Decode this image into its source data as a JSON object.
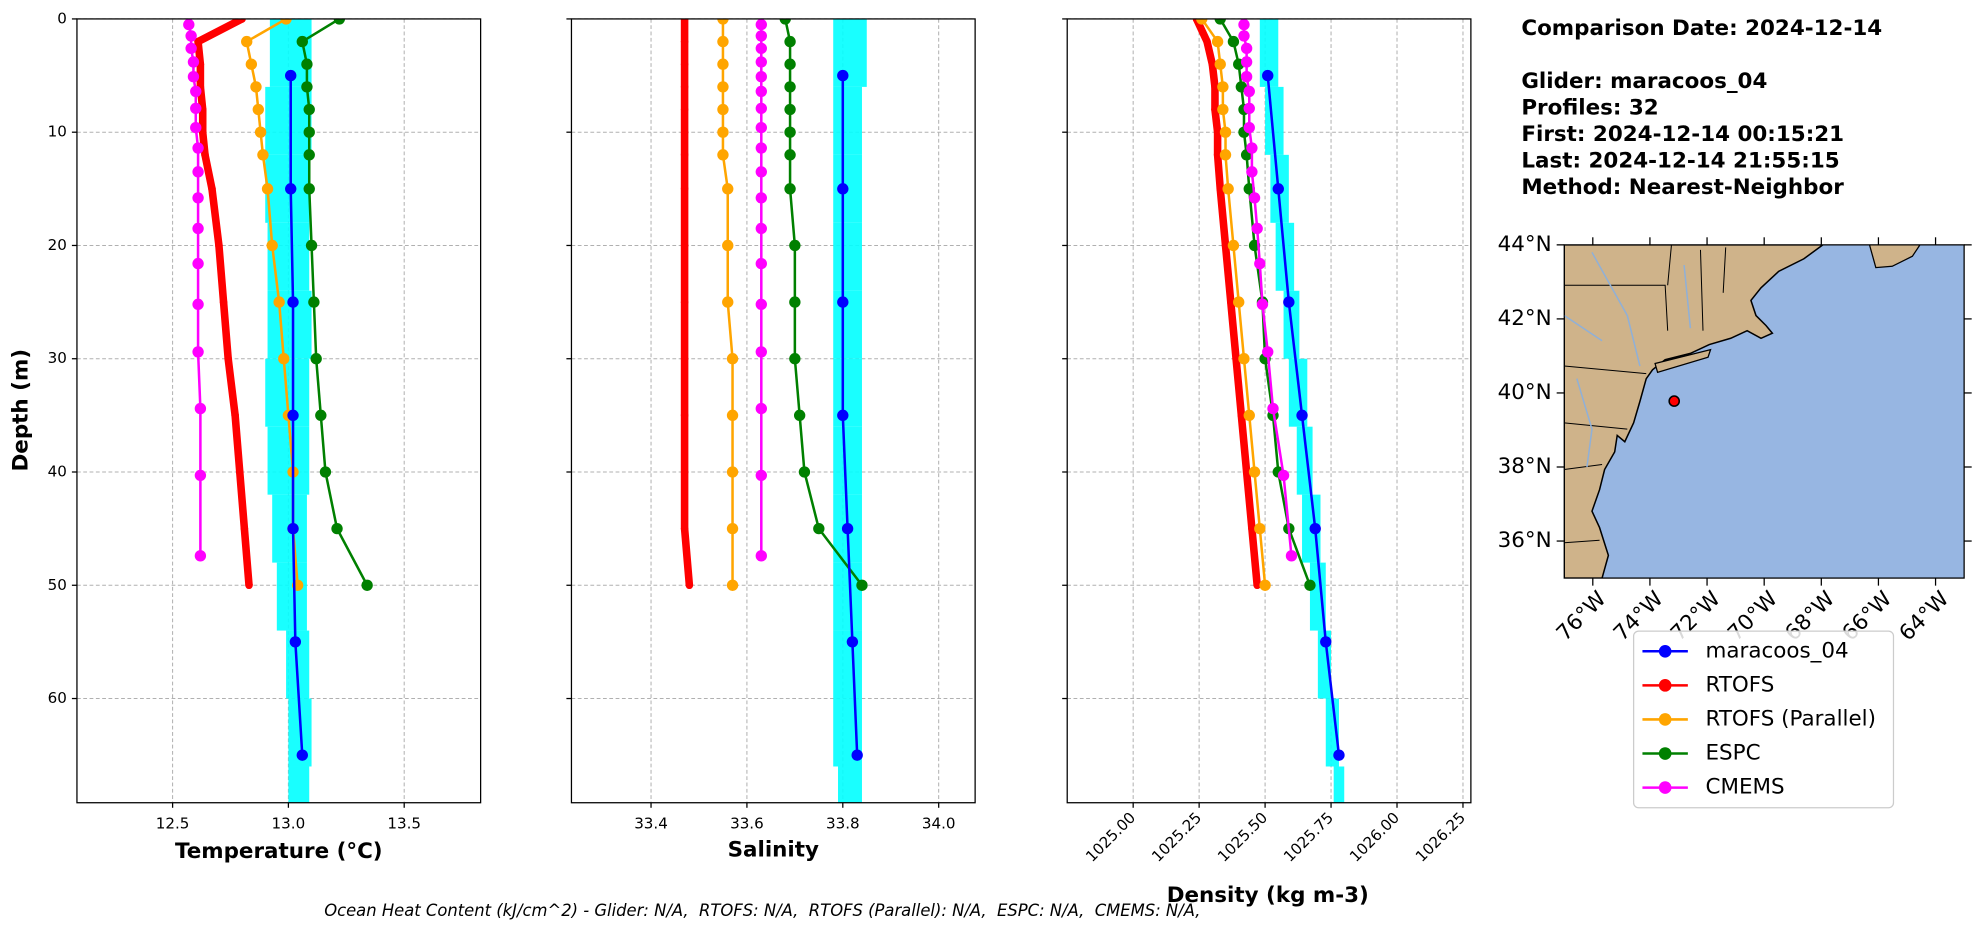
{
  "chart_data": [
    {
      "type": "line",
      "xlabel": "Temperature (°C)",
      "ylabel": "Depth (m)",
      "xlim": [
        12.087,
        13.83
      ],
      "xticks": [
        12.5,
        {
          "value": 13,
          "label": "13.0"
        },
        13.5
      ],
      "ylim": [
        0,
        69.2
      ],
      "yticks": [
        0,
        10,
        20,
        30,
        40,
        50,
        60
      ],
      "y_inverted": true,
      "grid": true,
      "profiles": {
        "color": "#00ffff",
        "depth": [
          3,
          9,
          15,
          21,
          27,
          33,
          39,
          45,
          51,
          57,
          63,
          69
        ],
        "min": [
          12.92,
          12.9,
          12.9,
          12.91,
          12.91,
          12.9,
          12.91,
          12.93,
          12.95,
          12.99,
          13.0,
          13.0
        ],
        "max": [
          13.1,
          13.1,
          13.09,
          13.09,
          13.1,
          13.09,
          13.09,
          13.08,
          13.08,
          13.09,
          13.1,
          13.09
        ]
      },
      "series": [
        {
          "name": "maracoos_04",
          "color": "#0000ff",
          "linewidth": 2,
          "y": [
            5,
            15,
            25,
            35,
            45,
            55,
            65
          ],
          "values": [
            13.01,
            13.01,
            13.02,
            13.02,
            13.02,
            13.03,
            13.06
          ]
        },
        {
          "name": "RTOFS",
          "color": "#ff0000",
          "linewidth": 6,
          "y": [
            0,
            2,
            4,
            6,
            8,
            10,
            12,
            15,
            20,
            25,
            30,
            35,
            40,
            45,
            50
          ],
          "values": [
            12.8,
            12.61,
            12.62,
            12.62,
            12.63,
            12.63,
            12.64,
            12.67,
            12.7,
            12.72,
            12.74,
            12.77,
            12.79,
            12.81,
            12.83
          ]
        },
        {
          "name": "RTOFS (Parallel)",
          "color": "#ffa500",
          "linewidth": 2,
          "y": [
            0,
            2,
            4,
            6,
            8,
            10,
            12,
            15,
            20,
            25,
            30,
            35,
            40,
            45,
            50
          ],
          "values": [
            12.99,
            12.82,
            12.84,
            12.86,
            12.87,
            12.88,
            12.89,
            12.91,
            12.93,
            12.96,
            12.98,
            13.0,
            13.02,
            13.02,
            13.04
          ]
        },
        {
          "name": "ESPC",
          "color": "#008000",
          "linewidth": 2,
          "y": [
            0,
            2,
            4,
            6,
            8,
            10,
            12,
            15,
            20,
            25,
            30,
            35,
            40,
            45,
            50
          ],
          "values": [
            13.22,
            13.06,
            13.08,
            13.08,
            13.09,
            13.09,
            13.09,
            13.09,
            13.1,
            13.11,
            13.12,
            13.14,
            13.16,
            13.21,
            13.34
          ]
        },
        {
          "name": "CMEMS",
          "color": "#ff00ff",
          "linewidth": 2,
          "y": [
            0.5,
            1.5,
            2.6,
            3.8,
            5.1,
            6.4,
            7.9,
            9.6,
            11.4,
            13.5,
            15.8,
            18.5,
            21.6,
            25.2,
            29.4,
            34.4,
            40.3,
            47.4
          ],
          "values": [
            12.57,
            12.58,
            12.58,
            12.59,
            12.59,
            12.6,
            12.6,
            12.6,
            12.61,
            12.61,
            12.61,
            12.61,
            12.61,
            12.61,
            12.61,
            12.62,
            12.62,
            12.62
          ]
        }
      ]
    },
    {
      "type": "line",
      "xlabel": "Salinity",
      "xlim": [
        33.234,
        34.076
      ],
      "xticks": [
        33.4,
        33.6,
        33.8,
        {
          "value": 34,
          "label": "34.0"
        }
      ],
      "profiles": {
        "min": [
          33.78,
          33.78,
          33.78,
          33.78,
          33.78,
          33.78,
          33.78,
          33.78,
          33.78,
          33.78,
          33.78,
          33.79
        ],
        "max": [
          33.85,
          33.84,
          33.84,
          33.84,
          33.84,
          33.84,
          33.84,
          33.84,
          33.84,
          33.84,
          33.84,
          33.84
        ]
      },
      "series": [
        {
          "values": [
            33.8,
            33.8,
            33.8,
            33.8,
            33.81,
            33.82,
            33.83
          ]
        },
        {
          "values": [
            33.47,
            33.47,
            33.47,
            33.47,
            33.47,
            33.47,
            33.47,
            33.47,
            33.47,
            33.47,
            33.47,
            33.47,
            33.47,
            33.47,
            33.48
          ]
        },
        {
          "values": [
            33.55,
            33.55,
            33.55,
            33.55,
            33.55,
            33.55,
            33.55,
            33.56,
            33.56,
            33.56,
            33.57,
            33.57,
            33.57,
            33.57,
            33.57
          ]
        },
        {
          "values": [
            33.68,
            33.69,
            33.69,
            33.69,
            33.69,
            33.69,
            33.69,
            33.69,
            33.7,
            33.7,
            33.7,
            33.71,
            33.72,
            33.75,
            33.84
          ]
        },
        {
          "values": [
            33.63,
            33.63,
            33.63,
            33.63,
            33.63,
            33.63,
            33.63,
            33.63,
            33.63,
            33.63,
            33.63,
            33.63,
            33.63,
            33.63,
            33.63,
            33.63,
            33.63,
            33.63
          ]
        }
      ]
    },
    {
      "type": "line",
      "xlabel": "Density (kg m-3)",
      "xtick_rotation": 45,
      "xlim": [
        1024.75,
        1026.28
      ],
      "xticks": [
        {
          "value": 1025,
          "label": "1025.00"
        },
        1025.25,
        {
          "value": 1025.5,
          "label": "1025.50"
        },
        1025.75,
        {
          "value": 1026,
          "label": "1026.00"
        },
        1026.25
      ],
      "profiles": {
        "min": [
          1025.48,
          1025.5,
          1025.52,
          1025.54,
          1025.57,
          1025.59,
          1025.62,
          1025.64,
          1025.67,
          1025.7,
          1025.73,
          1025.76
        ],
        "max": [
          1025.55,
          1025.57,
          1025.59,
          1025.61,
          1025.63,
          1025.66,
          1025.68,
          1025.71,
          1025.73,
          1025.75,
          1025.78,
          1025.8
        ]
      },
      "series": [
        {
          "values": [
            1025.51,
            1025.55,
            1025.59,
            1025.64,
            1025.69,
            1025.73,
            1025.78
          ]
        },
        {
          "values": [
            1025.24,
            1025.28,
            1025.3,
            1025.31,
            1025.31,
            1025.32,
            1025.32,
            1025.33,
            1025.35,
            1025.37,
            1025.39,
            1025.41,
            1025.43,
            1025.45,
            1025.47
          ]
        },
        {
          "values": [
            1025.26,
            1025.32,
            1025.33,
            1025.34,
            1025.34,
            1025.35,
            1025.35,
            1025.36,
            1025.38,
            1025.4,
            1025.42,
            1025.44,
            1025.46,
            1025.48,
            1025.5
          ]
        },
        {
          "values": [
            1025.33,
            1025.38,
            1025.4,
            1025.41,
            1025.42,
            1025.42,
            1025.43,
            1025.44,
            1025.46,
            1025.49,
            1025.5,
            1025.53,
            1025.55,
            1025.59,
            1025.67
          ]
        },
        {
          "values": [
            1025.42,
            1025.42,
            1025.43,
            1025.43,
            1025.43,
            1025.44,
            1025.44,
            1025.44,
            1025.45,
            1025.45,
            1025.46,
            1025.47,
            1025.48,
            1025.49,
            1025.51,
            1025.53,
            1025.57,
            1025.6
          ]
        }
      ]
    }
  ],
  "info": [
    "Comparison Date: 2024-12-14",
    "Glider: maracoos_04",
    "Profiles: 32",
    "First: 2024-12-14 00:15:21",
    "Last: 2024-12-14 21:55:15",
    "Method: Nearest-Neighbor"
  ],
  "map": {
    "xlim": [
      -77,
      -63
    ],
    "ylim": [
      35,
      44
    ],
    "xticks": [
      {
        "value": -76,
        "label": "76°W"
      },
      {
        "value": -74,
        "label": "74°W"
      },
      {
        "value": -72,
        "label": "72°W"
      },
      {
        "value": -70,
        "label": "70°W"
      },
      {
        "value": -68,
        "label": "68°W"
      },
      {
        "value": -66,
        "label": "66°W"
      },
      {
        "value": -64,
        "label": "64°W"
      }
    ],
    "yticks": [
      {
        "value": 44,
        "label": "44°N"
      },
      {
        "value": 42,
        "label": "42°N"
      },
      {
        "value": 40,
        "label": "40°N"
      },
      {
        "value": 38,
        "label": "38°N"
      },
      {
        "value": 36,
        "label": "36°N"
      }
    ],
    "glider": {
      "lon": -73.15,
      "lat": 39.78,
      "color": "#ff0000"
    }
  },
  "footer": "Ocean Heat Content (kJ/cm^2) - Glider: N/A,  RTOFS: N/A,  RTOFS (Parallel): N/A,  ESPC: N/A,  CMEMS: N/A,"
}
